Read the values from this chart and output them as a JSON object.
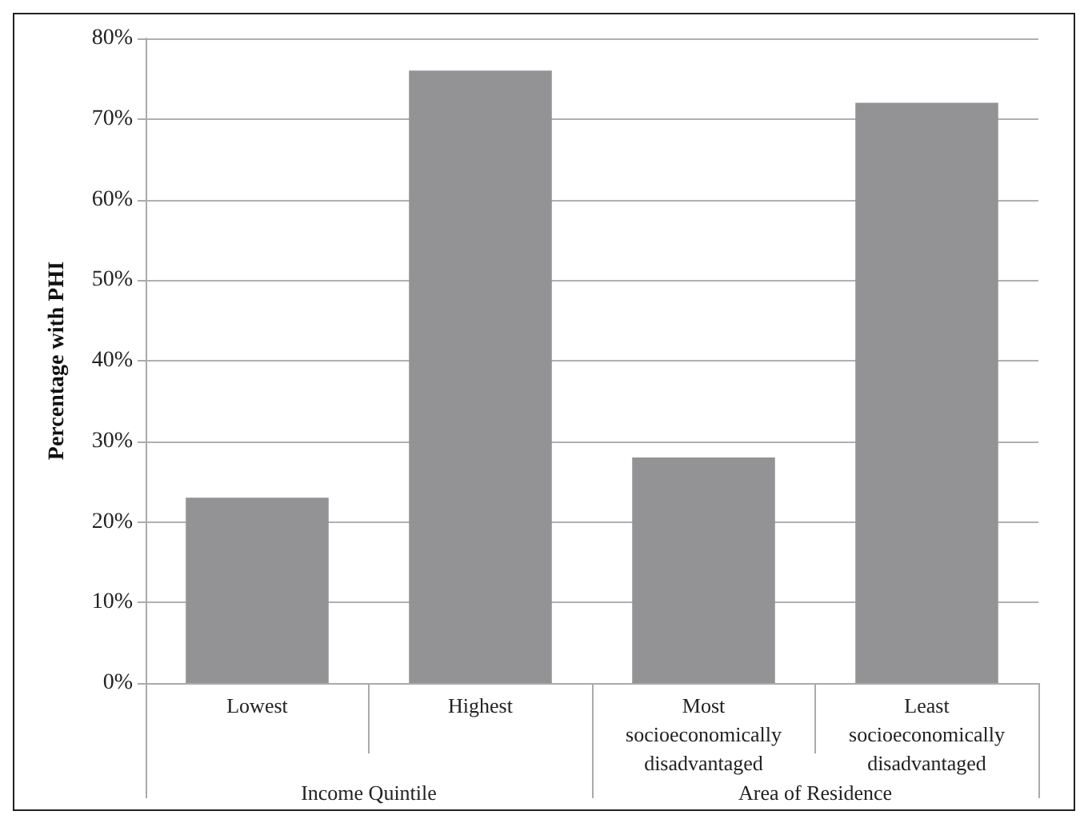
{
  "chart_data": {
    "type": "bar",
    "ylabel": "Percentage with PHI",
    "categories": [
      "Lowest",
      "Highest",
      "Most\nsocioeconomically\ndisadvantaged",
      "Least\nsocioeconomically\ndisadvantaged"
    ],
    "values": [
      23,
      76,
      28,
      72
    ],
    "color": "#939396",
    "annotations": [
      "Income Quintile",
      "Area of Residence"
    ],
    "ylim": [
      0,
      80
    ],
    "yticks": [
      {
        "value": 0,
        "label": "0%"
      },
      {
        "value": 10,
        "label": "10%"
      },
      {
        "value": 20,
        "label": "20%"
      },
      {
        "value": 30,
        "label": "30%"
      },
      {
        "value": 40,
        "label": "40%"
      },
      {
        "value": 50,
        "label": "50%"
      },
      {
        "value": 60,
        "label": "60%"
      },
      {
        "value": 70,
        "label": "70%"
      },
      {
        "value": 80,
        "label": "80%"
      }
    ],
    "grid": true
  }
}
